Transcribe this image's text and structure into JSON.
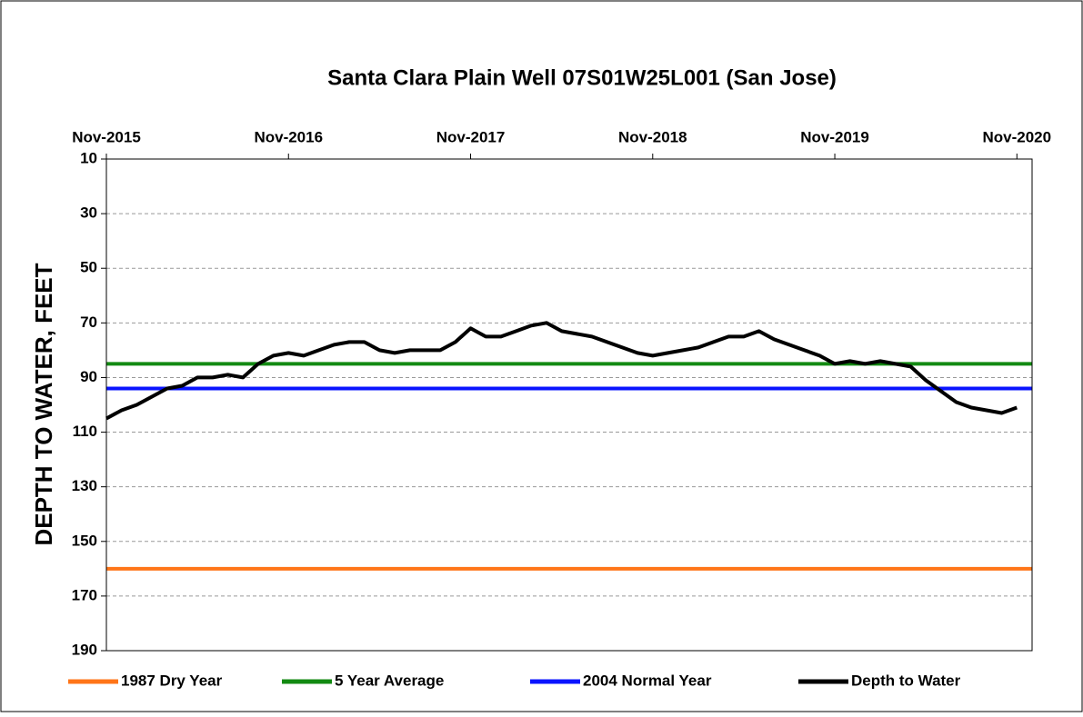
{
  "chart_data": {
    "type": "line",
    "title": "Santa Clara Plain Well 07S01W25L001  (San Jose)",
    "y_label": "DEPTH TO WATER, FEET",
    "invert_y": true,
    "grid": true,
    "legend": "bottom",
    "ylim": [
      10,
      190
    ],
    "yticks": [
      10,
      30,
      50,
      70,
      90,
      110,
      130,
      150,
      170,
      190
    ],
    "xlim": [
      "2015-11",
      "2020-12"
    ],
    "xticks": [
      {
        "value": "2015-11",
        "label": "Nov-2015"
      },
      {
        "value": "2016-11",
        "label": "Nov-2016"
      },
      {
        "value": "2017-11",
        "label": "Nov-2017"
      },
      {
        "value": "2018-11",
        "label": "Nov-2018"
      },
      {
        "value": "2019-11",
        "label": "Nov-2019"
      },
      {
        "value": "2020-11",
        "label": "Nov-2020"
      }
    ],
    "reference_lines": [
      {
        "name": "1987 Dry Year",
        "color": "#ff7518",
        "value": 160
      },
      {
        "name": "5 Year Average",
        "color": "#138a12",
        "value": 85
      },
      {
        "name": "2004 Normal Year",
        "color": "#0a14ff",
        "value": 94
      }
    ],
    "x": [
      "2015-11",
      "2015-12",
      "2016-01",
      "2016-02",
      "2016-03",
      "2016-04",
      "2016-05",
      "2016-06",
      "2016-07",
      "2016-08",
      "2016-09",
      "2016-10",
      "2016-11",
      "2016-12",
      "2017-01",
      "2017-02",
      "2017-03",
      "2017-04",
      "2017-05",
      "2017-06",
      "2017-07",
      "2017-08",
      "2017-09",
      "2017-10",
      "2017-11",
      "2017-12",
      "2018-01",
      "2018-02",
      "2018-03",
      "2018-04",
      "2018-05",
      "2018-06",
      "2018-07",
      "2018-08",
      "2018-09",
      "2018-10",
      "2018-11",
      "2018-12",
      "2019-01",
      "2019-02",
      "2019-03",
      "2019-04",
      "2019-05",
      "2019-06",
      "2019-07",
      "2019-08",
      "2019-09",
      "2019-10",
      "2019-11",
      "2019-12",
      "2020-01",
      "2020-02",
      "2020-03",
      "2020-04",
      "2020-05",
      "2020-06",
      "2020-07",
      "2020-08",
      "2020-09",
      "2020-10",
      "2020-11"
    ],
    "series": [
      {
        "name": "Depth to Water",
        "color": "#000000",
        "values": [
          105,
          102,
          100,
          97,
          94,
          93,
          90,
          90,
          89,
          90,
          85,
          82,
          81,
          82,
          80,
          78,
          77,
          77,
          80,
          81,
          80,
          80,
          80,
          77,
          72,
          75,
          75,
          73,
          71,
          70,
          73,
          74,
          75,
          77,
          79,
          81,
          82,
          81,
          80,
          79,
          77,
          75,
          75,
          73,
          76,
          78,
          80,
          82,
          85,
          84,
          85,
          84,
          85,
          86,
          91,
          95,
          99,
          101,
          102,
          103,
          101
        ]
      }
    ]
  }
}
